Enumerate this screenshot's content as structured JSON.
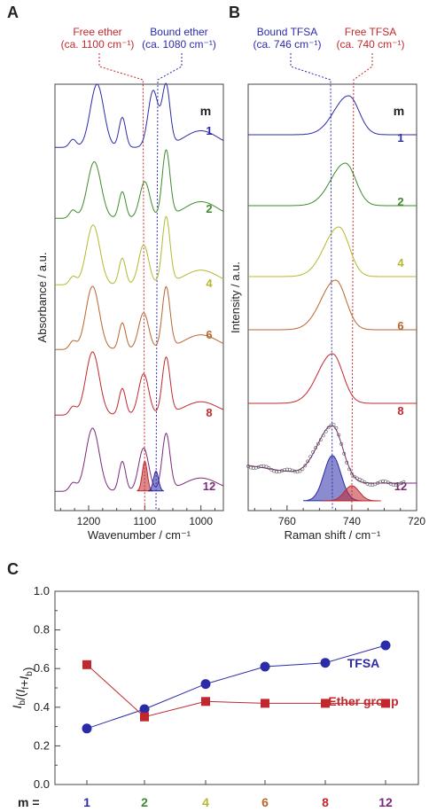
{
  "panels": {
    "A": {
      "letter": "A",
      "annot_left": [
        "Free ether",
        "(ca. 1100 cm⁻¹)"
      ],
      "annot_right": [
        "Bound ether",
        "(ca. 1080 cm⁻¹)"
      ],
      "m_label": "m",
      "xlabel": "Wavenumber / cm⁻¹",
      "ylabel": "Absorbance / a.u.",
      "xticks": [
        "1200",
        "1100",
        "1000"
      ]
    },
    "B": {
      "letter": "B",
      "annot_left": [
        "Bound TFSA",
        "(ca. 746 cm⁻¹)"
      ],
      "annot_right": [
        "Free TFSA",
        "(ca. 740 cm⁻¹)"
      ],
      "m_label": "m",
      "xlabel": "Raman shift / cm⁻¹",
      "ylabel": "Intensity / a.u.",
      "xticks": [
        "760",
        "740",
        "720"
      ]
    },
    "C": {
      "letter": "C",
      "ylabel_parts": [
        "I",
        "b",
        "/(",
        "I",
        "f",
        "+",
        "I",
        "b",
        ")"
      ],
      "m_prefix": "m ="
    }
  },
  "colors": {
    "m1": "#2b2ba8",
    "m2": "#3f8a2e",
    "m4": "#b4b830",
    "m6": "#b8652e",
    "m8": "#c0282e",
    "m12": "#7a2a78",
    "free": "#c0282e",
    "bound": "#2b2ba8"
  },
  "spectra_labels": [
    "1",
    "2",
    "4",
    "6",
    "8",
    "12"
  ],
  "chart_data": [
    {
      "type": "line",
      "panel": "A",
      "xlabel": "Wavenumber / cm⁻¹",
      "ylabel": "Absorbance / a.u.",
      "xlim": [
        1260,
        960
      ],
      "x_reversed": true,
      "series": [
        {
          "name": "1",
          "peaks": [
            [
              1228,
              0.12
            ],
            [
              1185,
              0.95
            ],
            [
              1140,
              0.45
            ],
            [
              1085,
              0.85
            ],
            [
              1062,
              0.9
            ],
            [
              1000,
              0.25
            ]
          ]
        },
        {
          "name": "2",
          "peaks": [
            [
              1228,
              0.12
            ],
            [
              1190,
              0.85
            ],
            [
              1140,
              0.4
            ],
            [
              1100,
              0.55
            ],
            [
              1062,
              1.0
            ],
            [
              1000,
              0.25
            ]
          ]
        },
        {
          "name": "4",
          "peaks": [
            [
              1228,
              0.12
            ],
            [
              1192,
              0.9
            ],
            [
              1140,
              0.4
            ],
            [
              1102,
              0.6
            ],
            [
              1062,
              1.0
            ],
            [
              1000,
              0.22
            ]
          ]
        },
        {
          "name": "6",
          "peaks": [
            [
              1228,
              0.12
            ],
            [
              1193,
              0.95
            ],
            [
              1140,
              0.4
            ],
            [
              1102,
              0.55
            ],
            [
              1062,
              0.92
            ],
            [
              1000,
              0.22
            ]
          ]
        },
        {
          "name": "8",
          "peaks": [
            [
              1228,
              0.12
            ],
            [
              1193,
              0.95
            ],
            [
              1140,
              0.4
            ],
            [
              1102,
              0.62
            ],
            [
              1062,
              0.85
            ],
            [
              1000,
              0.2
            ]
          ]
        },
        {
          "name": "12",
          "peaks": [
            [
              1228,
              0.12
            ],
            [
              1193,
              0.95
            ],
            [
              1140,
              0.45
            ],
            [
              1102,
              0.65
            ],
            [
              1062,
              0.85
            ],
            [
              1000,
              0.2
            ]
          ]
        }
      ],
      "fit_components": [
        {
          "name": "Free ether",
          "center": 1100,
          "height": 0.45
        },
        {
          "name": "Bound ether",
          "center": 1080,
          "height": 0.3
        }
      ],
      "reference_lines": [
        1100,
        1080
      ]
    },
    {
      "type": "line",
      "panel": "B",
      "xlabel": "Raman shift / cm⁻¹",
      "ylabel": "Intensity / a.u.",
      "xlim": [
        772,
        720
      ],
      "x_reversed": true,
      "series": [
        {
          "name": "1",
          "peak_center": 741,
          "height": 0.55
        },
        {
          "name": "2",
          "peak_center": 742,
          "height": 0.6
        },
        {
          "name": "4",
          "peak_center": 744,
          "height": 0.7
        },
        {
          "name": "6",
          "peak_center": 745,
          "height": 0.7
        },
        {
          "name": "8",
          "peak_center": 746,
          "height": 0.7
        },
        {
          "name": "12",
          "peak_center": 746,
          "height": 0.75
        }
      ],
      "fit_components": [
        {
          "name": "Bound TFSA",
          "center": 746,
          "height": 0.6
        },
        {
          "name": "Free TFSA",
          "center": 740,
          "height": 0.2
        }
      ],
      "reference_lines": [
        746,
        740
      ]
    },
    {
      "type": "scatter",
      "panel": "C",
      "categories": [
        "1",
        "2",
        "4",
        "6",
        "8",
        "12"
      ],
      "ylim": [
        0.0,
        1.0
      ],
      "yticks": [
        "0.0",
        "0.2",
        "0.4",
        "0.6",
        "0.8",
        "1.0"
      ],
      "series": [
        {
          "name": "TFSA",
          "color": "#2b2ba8",
          "marker": "circle",
          "values": [
            0.29,
            0.39,
            0.52,
            0.61,
            0.63,
            0.72
          ]
        },
        {
          "name": "Ether group",
          "color": "#c0282e",
          "marker": "square",
          "values": [
            0.62,
            0.35,
            0.43,
            0.42,
            0.42,
            0.42
          ]
        }
      ]
    }
  ]
}
